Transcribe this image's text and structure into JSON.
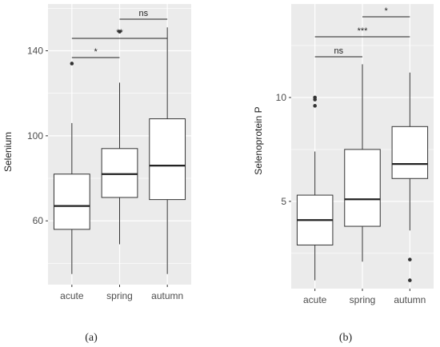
{
  "chart_data": [
    {
      "type": "box",
      "panel_label": "(a)",
      "ylabel": "Selenium",
      "xlabel": "",
      "categories": [
        "acute",
        "spring",
        "autumn"
      ],
      "ylim": [
        30,
        162
      ],
      "yticks": [
        60,
        100,
        140
      ],
      "grid": true,
      "boxes": [
        {
          "category": "acute",
          "whisker_low": 35,
          "q1": 56,
          "median": 67,
          "q3": 82,
          "whisker_high": 106,
          "outliers": [
            134
          ]
        },
        {
          "category": "spring",
          "whisker_low": 49,
          "q1": 71,
          "median": 82,
          "q3": 94,
          "whisker_high": 125,
          "outliers": [
            149
          ]
        },
        {
          "category": "autumn",
          "whisker_low": 35,
          "q1": 70,
          "median": 86,
          "q3": 108,
          "whisker_high": 151,
          "outliers": []
        }
      ],
      "significance": [
        {
          "from": "acute",
          "to": "spring",
          "label": "*"
        },
        {
          "from": "acute",
          "to": "autumn",
          "label": "**"
        },
        {
          "from": "spring",
          "to": "autumn",
          "label": "ns"
        }
      ]
    },
    {
      "type": "box",
      "panel_label": "(b)",
      "ylabel": "Selenoprotein P",
      "xlabel": "",
      "categories": [
        "acute",
        "spring",
        "autumn"
      ],
      "ylim": [
        0.8,
        14.5
      ],
      "yticks": [
        5,
        10
      ],
      "grid": true,
      "boxes": [
        {
          "category": "acute",
          "whisker_low": 1.2,
          "q1": 2.9,
          "median": 4.1,
          "q3": 5.3,
          "whisker_high": 7.4,
          "outliers": [
            9.6,
            9.9,
            10.0
          ]
        },
        {
          "category": "spring",
          "whisker_low": 2.1,
          "q1": 3.8,
          "median": 5.1,
          "q3": 7.5,
          "whisker_high": 11.6,
          "outliers": []
        },
        {
          "category": "autumn",
          "whisker_low": 3.6,
          "q1": 6.1,
          "median": 6.8,
          "q3": 8.6,
          "whisker_high": 11.2,
          "outliers": [
            2.2,
            1.2
          ]
        }
      ],
      "significance": [
        {
          "from": "acute",
          "to": "spring",
          "label": "ns"
        },
        {
          "from": "acute",
          "to": "autumn",
          "label": "***"
        },
        {
          "from": "spring",
          "to": "autumn",
          "label": "*"
        }
      ]
    }
  ]
}
